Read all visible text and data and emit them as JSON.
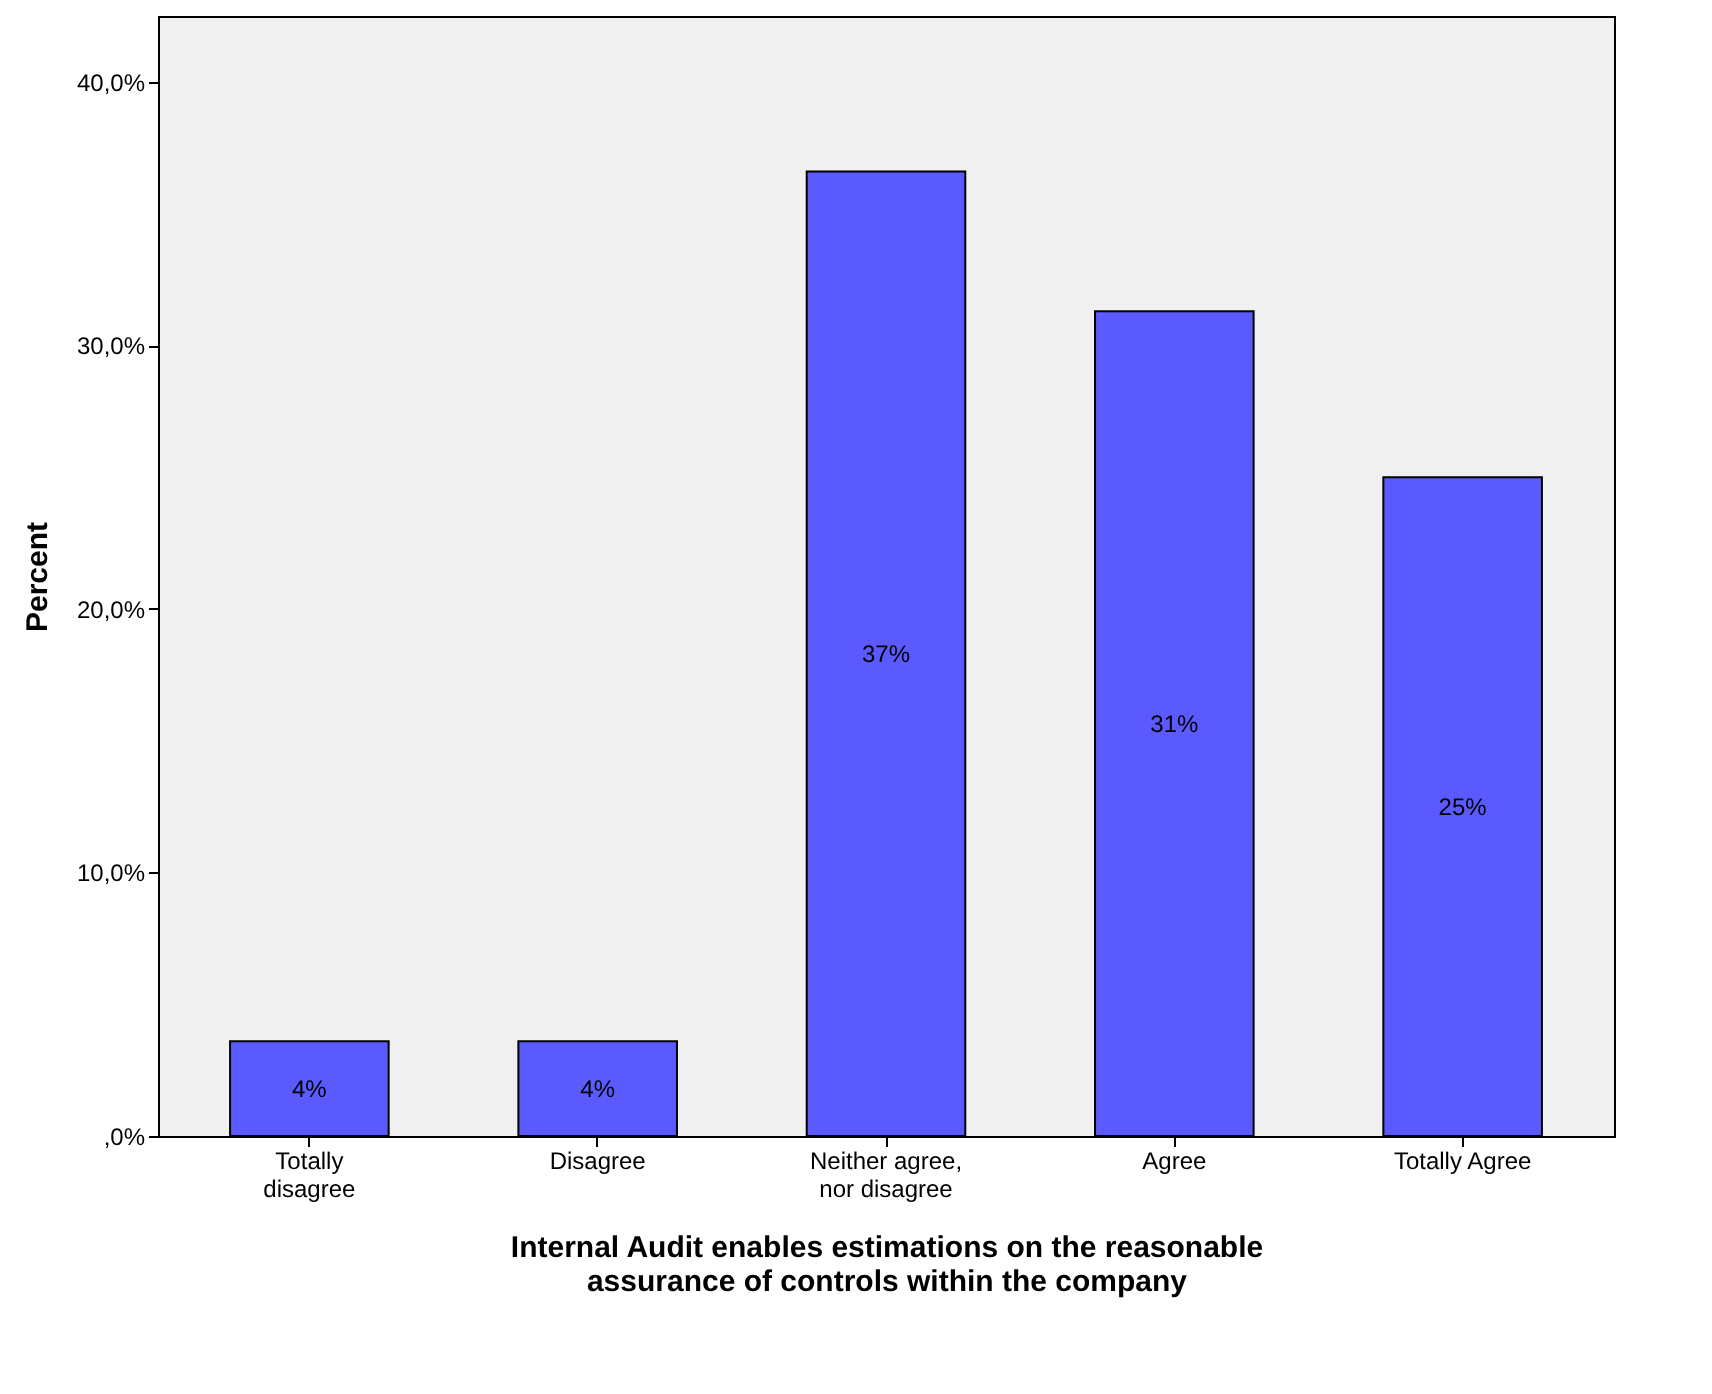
{
  "chart_data": {
    "type": "bar",
    "categories": [
      "Totally disagree",
      "Disagree",
      "Neither agree, nor disagree",
      "Agree",
      "Totally Agree"
    ],
    "values": [
      3.6,
      3.6,
      36.6,
      31.3,
      25.0
    ],
    "value_labels": [
      "4%",
      "4%",
      "37%",
      "31%",
      "25%"
    ],
    "color": "#5a5aff",
    "xlabel": "Internal Audit enables estimations on the reasonable assurance of controls within the company",
    "ylabel": "Percent",
    "ylim": [
      0,
      42.5
    ],
    "yticks": [
      {
        "value": 0,
        "label": ",0%"
      },
      {
        "value": 10,
        "label": "10,0%"
      },
      {
        "value": 20,
        "label": "20,0%"
      },
      {
        "value": 30,
        "label": "30,0%"
      },
      {
        "value": 40,
        "label": "40,0%"
      }
    ],
    "grid": false
  }
}
